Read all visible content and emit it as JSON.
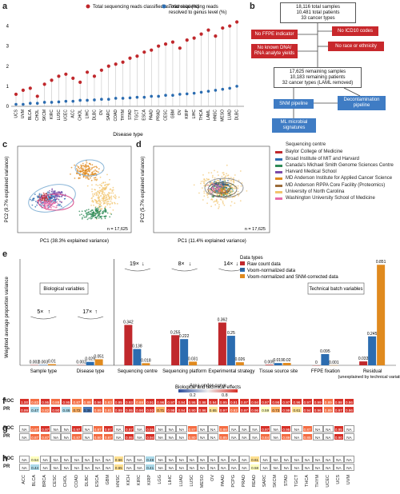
{
  "panels": {
    "a": "a",
    "b": "b",
    "c": "c",
    "d": "d",
    "e": "e",
    "f": "f",
    "g": "g",
    "h": "h"
  },
  "panel_a": {
    "legend": [
      "Total sequencing reads classified as microbial (%)",
      "Total sequencing reads resolved to genus level (%)"
    ],
    "xlabel": "Disease type",
    "colors": {
      "microbial": "#c0282c",
      "genus": "#2b6cb0"
    }
  },
  "flow": {
    "top": [
      "18,116 total samples",
      "10,481 total patients",
      "33 cancer types"
    ],
    "no_ffpe": "No FFPE indicator",
    "no_icd10": "No ICD10 codes",
    "no_dna": [
      "No known DNA/",
      "RNA analyte yields"
    ],
    "no_race": "No race or ethnicity",
    "mid": [
      "17,625 remaining samples",
      "10,183 remaining patients",
      "32 cancer types (LAML removed)"
    ],
    "snm": "SNM pipeline",
    "decon": [
      "Decontamination",
      "pipeline"
    ],
    "ml": [
      "ML microbial",
      "signatures"
    ]
  },
  "panel_c": {
    "xlabel": "PC1 (38.3% explained variance)",
    "ylabel": "PC2 (9.7% explained variance)",
    "n": "n = 17,625"
  },
  "panel_d": {
    "xlabel": "PC1 (11.4% explained variance)",
    "ylabel": "PC2 (5.7% explained variance)",
    "n": "n = 17,625"
  },
  "seq_legend": {
    "title": "Sequencing centre",
    "entries": [
      {
        "name": "Baylor College of Medicine",
        "color": "#c0282c"
      },
      {
        "name": "Broad Institute of MIT and Harvard",
        "color": "#2b6cb0"
      },
      {
        "name": "Canada's Michael Smith Genome Sciences Centre",
        "color": "#2e8b57"
      },
      {
        "name": "Harvard Medical School",
        "color": "#7b4aa8"
      },
      {
        "name": "MD Anderson Institute for Applied Cancer Science",
        "color": "#e08a1e"
      },
      {
        "name": "MD Anderson RPPA Core Facility (Proteomics)",
        "color": "#9b6b3a"
      },
      {
        "name": "University of North Carolina",
        "color": "#f2c46d"
      },
      {
        "name": "Washington University School of Medicine",
        "color": "#e86ca8"
      }
    ]
  },
  "panel_e": {
    "ylabel": "Weighted average proportion variance",
    "legend_title": "Data types",
    "bio_label": "Biological variables",
    "tech_label": "Technical batch variables",
    "fold": [
      "5×",
      "17×",
      "19×",
      "8×",
      "14×"
    ],
    "bottom_label": "Biological and technical effects"
  },
  "chart_data": {
    "type": "bar",
    "categories": [
      "Sample type",
      "Disease type",
      "Sequencing centre",
      "Sequencing platform",
      "Experimental strategy",
      "Tissue source site",
      "FFPE fixation",
      "Residual (unexplained by technical variation)"
    ],
    "series": [
      {
        "name": "Raw count data",
        "color": "#c0282c",
        "values": [
          0.002,
          0.002,
          0.342,
          0.255,
          0.362,
          0.005,
          0,
          0.033
        ]
      },
      {
        "name": "Voom-normalized data",
        "color": "#2b6cb0",
        "values": [
          0.003,
          0.029,
          0.138,
          0.222,
          0.25,
          0.019,
          0.095,
          0.245
        ]
      },
      {
        "name": "Voom-normalized and SNM-corrected data",
        "color": "#e08a1e",
        "values": [
          0.01,
          0.051,
          0.018,
          0.031,
          0.026,
          0.02,
          0.001,
          0.851
        ]
      }
    ],
    "labels": [
      [
        "0.002",
        "0.002",
        "0.342",
        "0.255",
        "0.362",
        "0.005",
        "0",
        "0.033"
      ],
      [
        "0.003",
        "0.029",
        "0.138",
        "0.222",
        "0.25",
        "0.019",
        "0.095",
        "0.245"
      ],
      [
        "0.01",
        "0.051",
        "0.018",
        "0.031",
        "0.026",
        "0.02",
        "0.001",
        "0.851"
      ]
    ],
    "ylim": [
      0,
      0.9
    ]
  },
  "auc": {
    "title": "Area under curve",
    "ticks": [
      "0.2",
      "0.8"
    ],
    "rows": [
      {
        "panel": "f",
        "label": "ROC",
        "cells": [
          "1.00",
          "0.83",
          "0.95",
          "0.88",
          "0.95",
          "0.87",
          "0.89",
          "0.96",
          "0.83",
          "0.95",
          "0.93",
          "0.88",
          "0.91",
          "0.96",
          "0.97",
          "0.94",
          "0.96",
          "0.98",
          "0.94",
          "0.95",
          "0.91",
          "0.97",
          "0.94",
          "0.97",
          "0.98",
          "0.97",
          "0.96",
          "0.97",
          "0.99",
          "0.89",
          "0.98",
          "0.96"
        ]
      },
      {
        "panel": "f",
        "label": "PR",
        "cells": [
          "0.99",
          "0.47",
          "0.82",
          "0.90",
          "0.46",
          "0.72",
          "0.36",
          "0.89",
          "0.81",
          "0.99",
          "0.95",
          "0.96",
          "0.92",
          "0.71",
          "0.98",
          "0.94",
          "0.90",
          "0.96",
          "0.65",
          "0.97",
          "0.82",
          "0.97",
          "0.96",
          "0.59",
          "0.73",
          "0.99",
          "0.61",
          "0.94",
          "0.96",
          "0.89",
          "0.97",
          "0.96"
        ]
      },
      {
        "panel": "g",
        "label": "ROC",
        "cells": [
          "NA",
          "0.87",
          "0.97",
          "NA",
          "NA",
          "0.97",
          "NA",
          "0.87",
          "0.97",
          "NA",
          "0.97",
          "NA",
          "0.95",
          "NA",
          "NA",
          "NA",
          "0.87",
          "NA",
          "NA",
          "0.88",
          "NA",
          "NA",
          "NA",
          "0.97",
          "NA",
          "0.95",
          "NA",
          "0.87",
          "NA",
          "NA",
          "0.95",
          "NA"
        ]
      },
      {
        "panel": "g",
        "label": "PR",
        "cells": [
          "NA",
          "0.87",
          "0.87",
          "NA",
          "NA",
          "0.87",
          "NA",
          "0.80",
          "0.87",
          "NA",
          "0.95",
          "NA",
          "0.94",
          "NA",
          "NA",
          "NA",
          "0.80",
          "NA",
          "NA",
          "0.85",
          "NA",
          "NA",
          "NA",
          "0.84",
          "NA",
          "0.89",
          "NA",
          "0.85",
          "NA",
          "NA",
          "0.90",
          "NA"
        ]
      },
      {
        "panel": "h",
        "label": "ROC",
        "cells": [
          "NA",
          "0.54",
          "NA",
          "NA",
          "NA",
          "NA",
          "NA",
          "NA",
          "NA",
          "0.66",
          "NA",
          "NA",
          "0.48",
          "NA",
          "NA",
          "NA",
          "NA",
          "NA",
          "NA",
          "NA",
          "NA",
          "NA",
          "0.61",
          "NA",
          "NA",
          "NA",
          "NA",
          "NA",
          "NA",
          "NA",
          "NA",
          "NA"
        ]
      },
      {
        "panel": "h",
        "label": "PR",
        "cells": [
          "NA",
          "0.44",
          "NA",
          "NA",
          "NA",
          "NA",
          "NA",
          "NA",
          "NA",
          "0.65",
          "NA",
          "NA",
          "0.41",
          "NA",
          "NA",
          "NA",
          "NA",
          "NA",
          "NA",
          "NA",
          "NA",
          "NA",
          "0.58",
          "NA",
          "NA",
          "NA",
          "NA",
          "NA",
          "NA",
          "NA",
          "NA",
          "NA"
        ]
      }
    ],
    "cancers": [
      "ACC",
      "BLCA",
      "BRCA",
      "CESC",
      "CHOL",
      "COAD",
      "DLBC",
      "ESCA",
      "GBM",
      "HNSC",
      "KICH",
      "KIRC",
      "KIRP",
      "LGG",
      "LIHC",
      "LUAD",
      "LUSC",
      "MESO",
      "OV",
      "PAAD",
      "PCPG",
      "PRAD",
      "READ",
      "SARC",
      "SKCM",
      "STAD",
      "TGCT",
      "THCA",
      "THYM",
      "UCEC",
      "UCS",
      "UVM"
    ]
  },
  "panel_a_axis": {
    "yticks": [
      "0",
      "1",
      "2",
      "3",
      "4"
    ],
    "cancers": [
      "UCS",
      "UVM",
      "BLCA",
      "CHOL",
      "SKCM",
      "KIRC",
      "LUSC",
      "UCEC",
      "ACC",
      "CHOL",
      "LIHC",
      "DLBC",
      "OV",
      "SARC",
      "COAD",
      "THYM",
      "STAD",
      "TGCT",
      "ESCA",
      "PAAD",
      "PRAD",
      "CESC",
      "GBM",
      "OV",
      "KIRP",
      "LIHC",
      "THCA",
      "LAML",
      "HNSC",
      "MESO",
      "LUAD",
      "DLBC"
    ],
    "microbial": [
      0.6,
      0.8,
      0.9,
      0.5,
      1.1,
      1.3,
      1.5,
      1.6,
      1.4,
      1.2,
      1.7,
      1.5,
      1.8,
      2.0,
      2.1,
      2.2,
      2.4,
      2.5,
      2.7,
      2.8,
      3.0,
      3.1,
      3.2,
      2.9,
      3.3,
      3.4,
      3.6,
      3.8,
      3.5,
      3.9,
      4.0,
      4.2
    ],
    "genus": [
      0.1,
      0.1,
      0.15,
      0.15,
      0.2,
      0.2,
      0.22,
      0.25,
      0.25,
      0.3,
      0.3,
      0.32,
      0.35,
      0.35,
      0.4,
      0.4,
      0.42,
      0.45,
      0.45,
      0.5,
      0.5,
      0.55,
      0.55,
      0.6,
      0.62,
      0.65,
      0.7,
      0.75,
      0.8,
      0.85,
      0.9,
      1.0
    ]
  }
}
